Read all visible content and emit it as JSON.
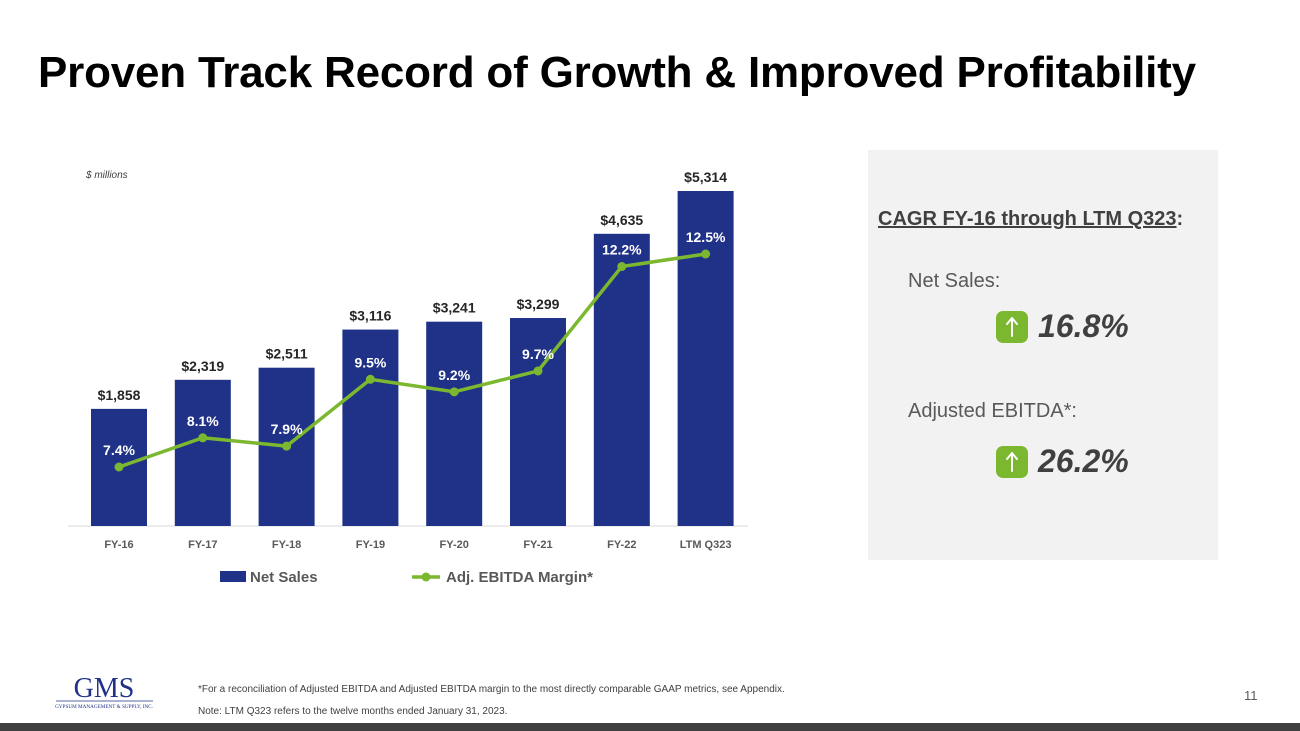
{
  "page": {
    "title": "Proven Track Record of Growth & Improved Profitability",
    "page_number": "11"
  },
  "chart_data": {
    "type": "bar",
    "units_note": "$ millions",
    "categories": [
      "FY-16",
      "FY-17",
      "FY-18",
      "FY-19",
      "FY-20",
      "FY-21",
      "FY-22",
      "LTM Q323"
    ],
    "bar_labels": [
      "$1,858",
      "$2,319",
      "$2,511",
      "$3,116",
      "$3,241",
      "$3,299",
      "$4,635",
      "$5,314"
    ],
    "line_labels": [
      "7.4%",
      "8.1%",
      "7.9%",
      "9.5%",
      "9.2%",
      "9.7%",
      "12.2%",
      "12.5%"
    ],
    "series": [
      {
        "name": "Net Sales",
        "type": "bar",
        "color": "#1f3288",
        "values": [
          1858,
          2319,
          2511,
          3116,
          3241,
          3299,
          4635,
          5314
        ]
      },
      {
        "name": "Adj. EBITDA Margin*",
        "type": "line",
        "color": "#7cb82f",
        "values": [
          7.4,
          8.1,
          7.9,
          9.5,
          9.2,
          9.7,
          12.2,
          12.5
        ]
      }
    ],
    "ylim": [
      0,
      5314
    ],
    "ylim_line": [
      0,
      14
    ],
    "grid": false,
    "legend_position": "bottom"
  },
  "cagr_panel": {
    "title": "CAGR FY-16 through LTM Q323",
    "title_suffix": ":",
    "metrics": [
      {
        "label": "Net Sales:",
        "value": "16.8%",
        "icon": "up-arrow-icon"
      },
      {
        "label": "Adjusted EBITDA*:",
        "value": "26.2%",
        "icon": "up-arrow-icon"
      }
    ],
    "accent_color": "#7cb82f"
  },
  "footnotes": [
    "*For a reconciliation of Adjusted EBITDA and Adjusted EBITDA margin to the most directly comparable GAAP metrics, see Appendix.",
    "Note:  LTM Q323 refers to the twelve months ended January 31, 2023."
  ],
  "logo": {
    "wordmark": "GMS",
    "tagline": "GYPSUM MANAGEMENT & SUPPLY, INC."
  }
}
